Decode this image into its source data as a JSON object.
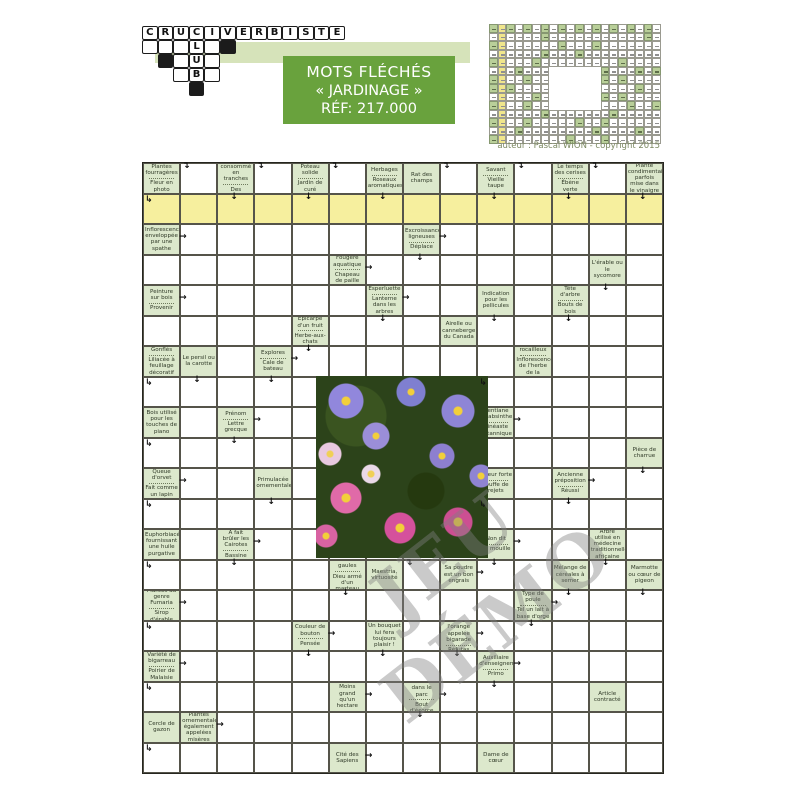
{
  "logo": {
    "word": "CRUCIVERBISTE",
    "club": [
      "L",
      "U",
      "B"
    ],
    "vertical_col": 4,
    "extra_white": [
      [
        1,
        1
      ],
      [
        1,
        2
      ],
      [
        1,
        3
      ],
      [
        1,
        5
      ],
      [
        2,
        3
      ],
      [
        2,
        5
      ],
      [
        3,
        3
      ],
      [
        3,
        5
      ]
    ],
    "extra_black": [
      [
        1,
        6
      ],
      [
        2,
        2
      ],
      [
        4,
        4
      ]
    ]
  },
  "banner": {
    "line1": "MOTS FLÉCHÉS",
    "line2": "« JARDINAGE »",
    "line3": "RÉF: 217.000"
  },
  "credit": "auteur : Pascal WION - copyright 2015",
  "watermark": "JEU DÉMO",
  "colors": {
    "banner_green": "#69a23d",
    "band_green": "#d6e3ba",
    "clue_cell_green": "#dce8cc",
    "yellow_row": "#f6ef9e",
    "mini_green": "#b9cf99",
    "mini_yellow": "#f0e68c",
    "grid_line": "#55544a",
    "clue_text": "#2e3826",
    "watermark_gray": "#808080"
  },
  "grid": {
    "cols": 14,
    "rows": 20,
    "yellow_row": 2,
    "photo_rows": [
      8,
      13
    ],
    "photo_cols": [
      6,
      10
    ],
    "clues": [
      [
        1,
        1,
        [
          "Plantes fourragères",
          "Fleur en photo"
        ]
      ],
      [
        1,
        3,
        [
          "Fruit consommé en tranches",
          "Des volubilis"
        ]
      ],
      [
        1,
        5,
        [
          "Poteau solide",
          "Jardin de curé"
        ]
      ],
      [
        1,
        7,
        [
          "Herbages",
          "Roseaux aromatiques"
        ]
      ],
      [
        1,
        8,
        [
          "Rat des champs"
        ]
      ],
      [
        1,
        10,
        [
          "Savant",
          "Vieille taupe"
        ]
      ],
      [
        1,
        12,
        [
          "Le temps des cerises",
          "Ébène verte"
        ]
      ],
      [
        1,
        14,
        [
          "Plante condimentaire parfois mise dans le vinaigre"
        ]
      ],
      [
        3,
        1,
        [
          "Inflorescence enveloppée par une spathe"
        ]
      ],
      [
        3,
        8,
        [
          "Excroissances ligneuses",
          "Déplace"
        ]
      ],
      [
        4,
        6,
        [
          "Fougère aquatique",
          "Chapeau de paille"
        ]
      ],
      [
        4,
        13,
        [
          "L'érable ou le sycomore"
        ]
      ],
      [
        5,
        1,
        [
          "Peinture sur bois",
          "Provenir"
        ]
      ],
      [
        5,
        7,
        [
          "Esperluette",
          "Lanterne dans les arbres"
        ]
      ],
      [
        5,
        10,
        [
          "Indication pour les pellicules"
        ]
      ],
      [
        5,
        12,
        [
          "Tête d'arbre",
          "Bouts de bois"
        ]
      ],
      [
        6,
        5,
        [
          "Épicarpe d'un fruit",
          "Herbe-aux-chats"
        ]
      ],
      [
        6,
        9,
        [
          "Airelle ou canneberge du Canada"
        ]
      ],
      [
        7,
        1,
        [
          "Gonflés",
          "Liliacée à feuillage décoratif"
        ]
      ],
      [
        7,
        2,
        [
          "Le persil ou la carotte"
        ]
      ],
      [
        7,
        4,
        [
          "Explores",
          "Cale de bateau"
        ]
      ],
      [
        7,
        11,
        [
          "Sol rocailleux",
          "Inflorescences de l'herbe de la pampa"
        ]
      ],
      [
        9,
        1,
        [
          "Bois utilisé pour les touches de piano"
        ]
      ],
      [
        9,
        3,
        [
          "Prénom",
          "Lettre grecque"
        ]
      ],
      [
        9,
        10,
        [
          "Gentiane ou absinthe",
          "Cinéaste britannique"
        ]
      ],
      [
        10,
        14,
        [
          "Pièce de charrue"
        ]
      ],
      [
        11,
        1,
        [
          "Queue d'orvet",
          "Fait comme un lapin"
        ]
      ],
      [
        11,
        4,
        [
          "Primulacée ornementale"
        ]
      ],
      [
        11,
        10,
        [
          "Odeur forte",
          "Touffe de rejets"
        ]
      ],
      [
        11,
        12,
        [
          "Ancienne préposition",
          "Réussi"
        ]
      ],
      [
        13,
        1,
        [
          "Euphorbiacée fournissant une huile purgative"
        ]
      ],
      [
        13,
        3,
        [
          "A fait brûler les Cairotes",
          "Bassine"
        ]
      ],
      [
        13,
        10,
        [
          "Non dit",
          "Se mouille"
        ]
      ],
      [
        13,
        13,
        [
          "Arbre utilisé en médecine traditionnelle africaine"
        ]
      ],
      [
        14,
        6,
        [
          "Rames ou gaules",
          "Dieu armé d'un marteau"
        ]
      ],
      [
        14,
        7,
        [
          "Maestria, virtuosité"
        ]
      ],
      [
        14,
        9,
        [
          "Sa poudre est un bon engrais"
        ]
      ],
      [
        14,
        12,
        [
          "Mélange de céréales à semer"
        ]
      ],
      [
        14,
        14,
        [
          "Marmotte ou cœur de pigeon"
        ]
      ],
      [
        15,
        1,
        [
          "Plantes du genre Fumaria",
          "Sirop d'érable"
        ]
      ],
      [
        15,
        11,
        [
          "Type de poule",
          "Tel un lait à base d'orge"
        ]
      ],
      [
        16,
        5,
        [
          "Couleur de bouton",
          "Pensée"
        ]
      ],
      [
        16,
        7,
        [
          "Un bouquet lui fera toujours plaisir !"
        ]
      ],
      [
        16,
        9,
        [
          "Telle l'orange appelée bigarade",
          "Réfutas"
        ]
      ],
      [
        17,
        1,
        [
          "Variété de bigarreau",
          "Poirier de Malaisie"
        ]
      ],
      [
        17,
        10,
        [
          "Auxiliaire d'enseignement",
          "Primo"
        ]
      ],
      [
        18,
        6,
        [
          "Moins grand qu'un hectare"
        ]
      ],
      [
        18,
        8,
        [
          "Chatons dans le parc",
          "Bout d'écorce"
        ]
      ],
      [
        18,
        13,
        [
          "Article contracté"
        ]
      ],
      [
        19,
        1,
        [
          "Cercle de gazon"
        ]
      ],
      [
        19,
        2,
        [
          "Plantes ornementales également appelées misères"
        ]
      ],
      [
        20,
        6,
        [
          "Cité des Sapiens"
        ]
      ],
      [
        20,
        10,
        [
          "Dame de cœur"
        ]
      ]
    ],
    "arrows": [
      [
        1,
        2,
        "b"
      ],
      [
        1,
        4,
        "b"
      ],
      [
        1,
        6,
        "b"
      ],
      [
        1,
        9,
        "b"
      ],
      [
        1,
        11,
        "b"
      ],
      [
        1,
        13,
        "b"
      ],
      [
        2,
        1,
        "k"
      ],
      [
        2,
        3,
        "d"
      ],
      [
        2,
        5,
        "d"
      ],
      [
        2,
        7,
        "d"
      ],
      [
        2,
        10,
        "d"
      ],
      [
        2,
        12,
        "d"
      ],
      [
        2,
        14,
        "d"
      ],
      [
        3,
        2,
        "r"
      ],
      [
        3,
        9,
        "r"
      ],
      [
        4,
        7,
        "r"
      ],
      [
        4,
        8,
        "d"
      ],
      [
        5,
        2,
        "r"
      ],
      [
        5,
        8,
        "r"
      ],
      [
        5,
        13,
        "d"
      ],
      [
        6,
        7,
        "d"
      ],
      [
        6,
        10,
        "d"
      ],
      [
        6,
        12,
        "d"
      ],
      [
        7,
        5,
        "r"
      ],
      [
        7,
        5,
        "d"
      ],
      [
        8,
        1,
        "k"
      ],
      [
        8,
        2,
        "d"
      ],
      [
        8,
        4,
        "d"
      ],
      [
        8,
        10,
        "k"
      ],
      [
        9,
        4,
        "r"
      ],
      [
        9,
        11,
        "r"
      ],
      [
        10,
        1,
        "k"
      ],
      [
        10,
        3,
        "d"
      ],
      [
        11,
        2,
        "r"
      ],
      [
        11,
        13,
        "r"
      ],
      [
        11,
        14,
        "d"
      ],
      [
        12,
        1,
        "k"
      ],
      [
        12,
        4,
        "d"
      ],
      [
        12,
        10,
        "k"
      ],
      [
        12,
        12,
        "d"
      ],
      [
        13,
        4,
        "r"
      ],
      [
        13,
        11,
        "r"
      ],
      [
        14,
        1,
        "k"
      ],
      [
        14,
        3,
        "d"
      ],
      [
        14,
        8,
        "b"
      ],
      [
        14,
        10,
        "r"
      ],
      [
        14,
        10,
        "d"
      ],
      [
        14,
        13,
        "d"
      ],
      [
        15,
        2,
        "r"
      ],
      [
        15,
        6,
        "d"
      ],
      [
        15,
        12,
        "r"
      ],
      [
        15,
        12,
        "d"
      ],
      [
        15,
        14,
        "d"
      ],
      [
        16,
        1,
        "k"
      ],
      [
        16,
        6,
        "r"
      ],
      [
        16,
        10,
        "r"
      ],
      [
        16,
        11,
        "d"
      ],
      [
        17,
        2,
        "r"
      ],
      [
        17,
        5,
        "d"
      ],
      [
        17,
        7,
        "d"
      ],
      [
        17,
        9,
        "d"
      ],
      [
        17,
        11,
        "r"
      ],
      [
        18,
        1,
        "k"
      ],
      [
        18,
        7,
        "r"
      ],
      [
        18,
        9,
        "r"
      ],
      [
        18,
        10,
        "d"
      ],
      [
        19,
        3,
        "r"
      ],
      [
        19,
        8,
        "d"
      ],
      [
        20,
        1,
        "k"
      ],
      [
        20,
        7,
        "r"
      ]
    ]
  },
  "mini_grid": {
    "cols": 20,
    "rows": 14,
    "yellow_col": 2
  }
}
